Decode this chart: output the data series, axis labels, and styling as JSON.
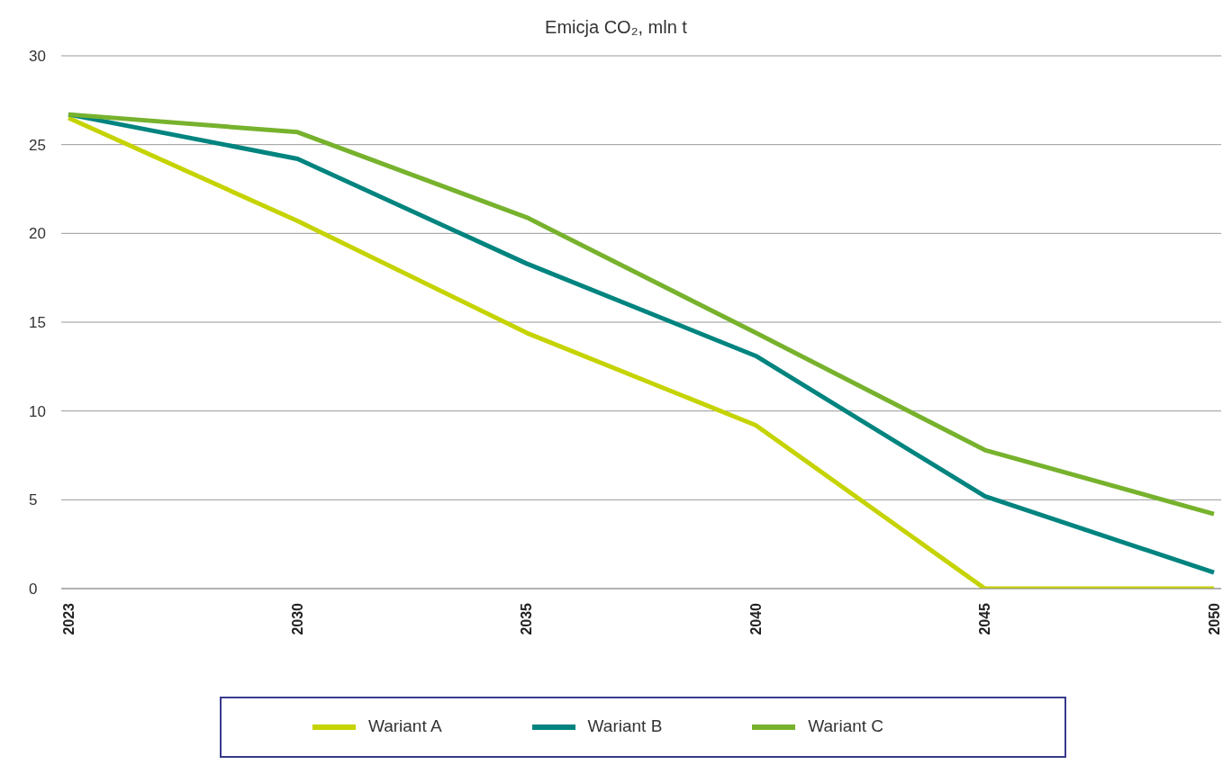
{
  "chart_data": {
    "type": "line",
    "title": "Emicja CO₂, mln t",
    "categories": [
      "2023",
      "2030",
      "2035",
      "2040",
      "2045",
      "2050"
    ],
    "series": [
      {
        "name": "Wariant A",
        "color": "#c5d300",
        "values": [
          26.5,
          20.7,
          14.4,
          9.2,
          0,
          0
        ]
      },
      {
        "name": "Wariant B",
        "color": "#00847f",
        "values": [
          26.7,
          24.2,
          18.3,
          13.1,
          5.2,
          0.9
        ]
      },
      {
        "name": "Wariant C",
        "color": "#77b22d",
        "values": [
          26.7,
          25.7,
          20.9,
          14.4,
          7.8,
          4.2
        ]
      }
    ],
    "ylim": [
      0,
      30
    ],
    "yticks": [
      0,
      5,
      10,
      15,
      20,
      25,
      30
    ],
    "grid": "y",
    "legend": "bottom",
    "marker": "none",
    "line_style": "solid"
  }
}
